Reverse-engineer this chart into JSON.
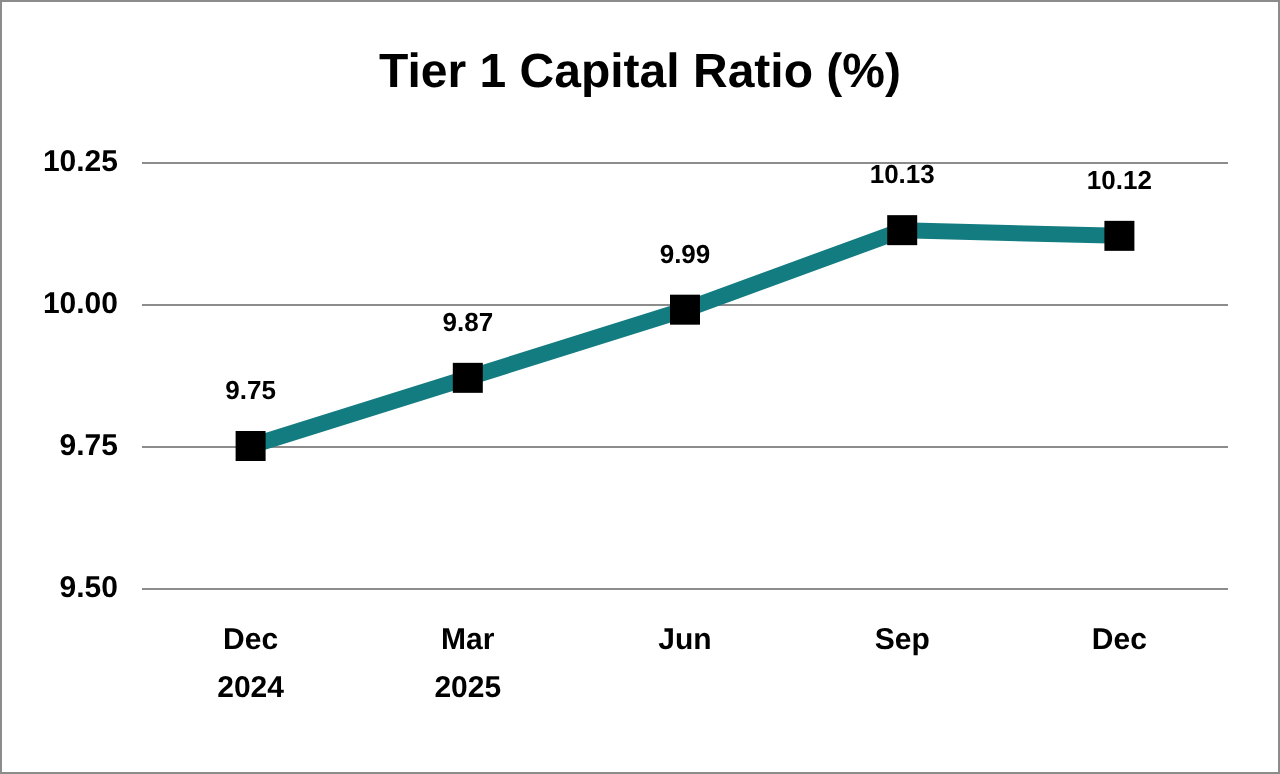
{
  "chart_data": {
    "type": "line",
    "title": "Tier 1 Capital Ratio (%)",
    "categories": [
      "Dec\n2024",
      "Mar\n2025",
      "Jun",
      "Sep",
      "Dec"
    ],
    "series": [
      {
        "color": "#137c80",
        "values": [
          9.75,
          9.87,
          9.99,
          10.13,
          10.12
        ]
      }
    ],
    "ylim": [
      9.5,
      10.25
    ],
    "yticks": [
      {
        "value": 9.5,
        "label": "9.50"
      },
      {
        "value": 9.75,
        "label": "9.75"
      },
      {
        "value": 10,
        "label": "10.00"
      },
      {
        "value": 10.25,
        "label": "10.25"
      }
    ],
    "grid": "y",
    "marker": "square",
    "line_style": "solid",
    "data_labels": true
  }
}
